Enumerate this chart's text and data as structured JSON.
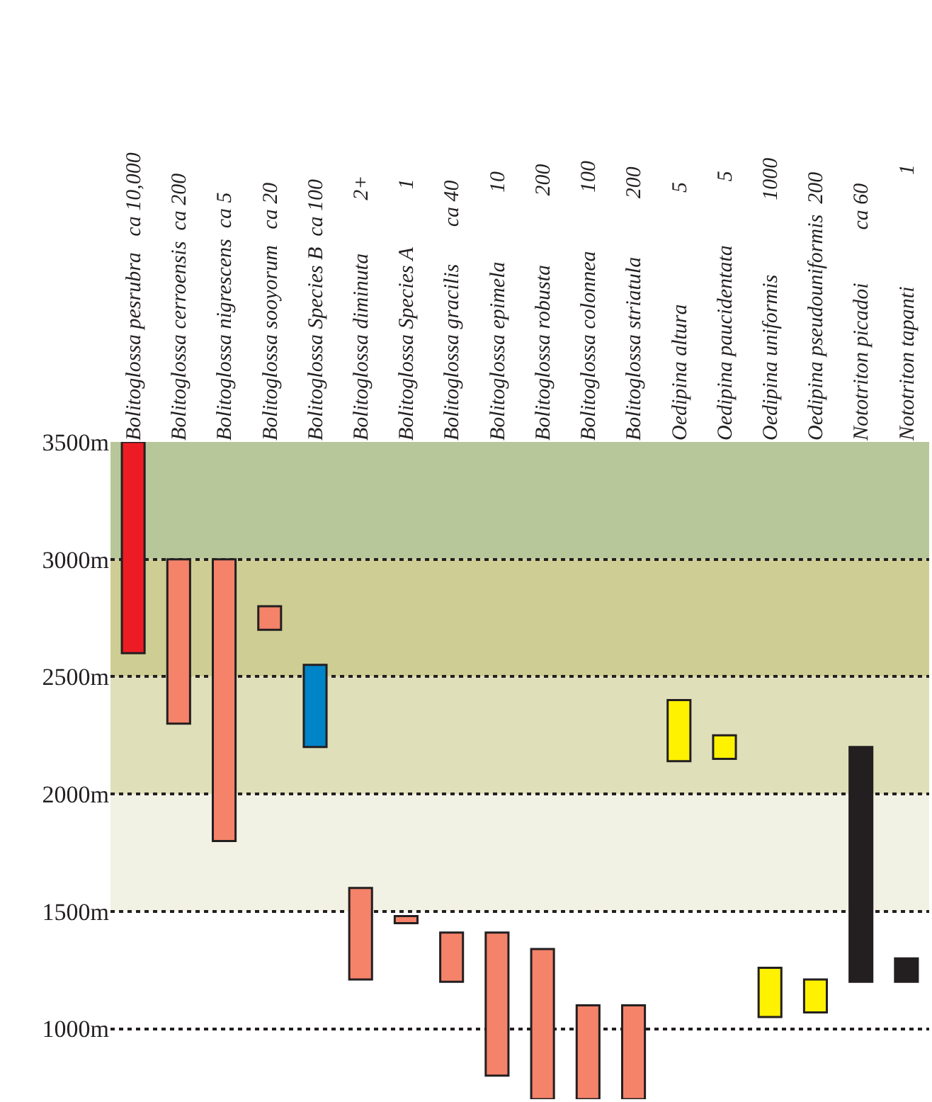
{
  "chart_data": {
    "type": "bar",
    "categories": [
      "Bolitoglossa pesrubra   ca 10,000",
      "Bolitoglossa cerroensis  ca 200",
      "Bolitoglossa nigrescens  ca 5",
      "Bolitoglossa sooyorum   ca 20",
      "Bolitoglossa Species B  ca 100",
      "Bolitoglossa diminuta          2+",
      "Bolitoglossa Species A           1",
      "Bolitoglossa gracilis       ca 40",
      "Bolitoglossa epimela             10",
      "Bolitoglossa robusta             200",
      "Bolitoglossa colonnea           100",
      "Bolitoglossa striatula           200",
      "Oedipina altura                     5",
      "Oedipina paucidentata            5",
      "Oedipina uniformis              1000",
      "Oedipina pseudouniformis  200",
      "Nototriton picadoi          ca 60",
      "Nototriton tapanti                     1"
    ],
    "base": [
      2600,
      2300,
      1800,
      2700,
      2200,
      1210,
      1450,
      1200,
      800,
      700,
      700,
      700,
      2140,
      2150,
      1050,
      1070,
      1200,
      1200
    ],
    "values": [
      900,
      700,
      1200,
      100,
      350,
      390,
      30,
      210,
      610,
      640,
      400,
      400,
      260,
      100,
      210,
      140,
      1000,
      100
    ],
    "colors": [
      "#ed1c24",
      "#f4836a",
      "#f4836a",
      "#f4836a",
      "#0084c8",
      "#f4836a",
      "#f4836a",
      "#f4836a",
      "#f4836a",
      "#f4836a",
      "#f4836a",
      "#f4836a",
      "#fff200",
      "#fff200",
      "#fff200",
      "#fff200",
      "#231f20",
      "#231f20"
    ],
    "ylim": [
      700,
      3500
    ],
    "yticks": [
      {
        "value": 1000,
        "label": "1000m"
      },
      {
        "value": 1500,
        "label": "1500m"
      },
      {
        "value": 2000,
        "label": "2000m"
      },
      {
        "value": 2500,
        "label": "2500m"
      },
      {
        "value": 3000,
        "label": "3000m"
      },
      {
        "value": 3500,
        "label": "3500m"
      }
    ],
    "grid": "y",
    "line_style": "dotted",
    "bands": [
      {
        "axis": "y",
        "from": 3000,
        "to": 3500,
        "color": "#b8c799"
      },
      {
        "axis": "y",
        "from": 2500,
        "to": 3000,
        "color": "#cece94"
      },
      {
        "axis": "y",
        "from": 2000,
        "to": 2500,
        "color": "#dfe0ba"
      },
      {
        "axis": "y",
        "from": 1500,
        "to": 2000,
        "color": "#f2f2e4"
      }
    ]
  }
}
